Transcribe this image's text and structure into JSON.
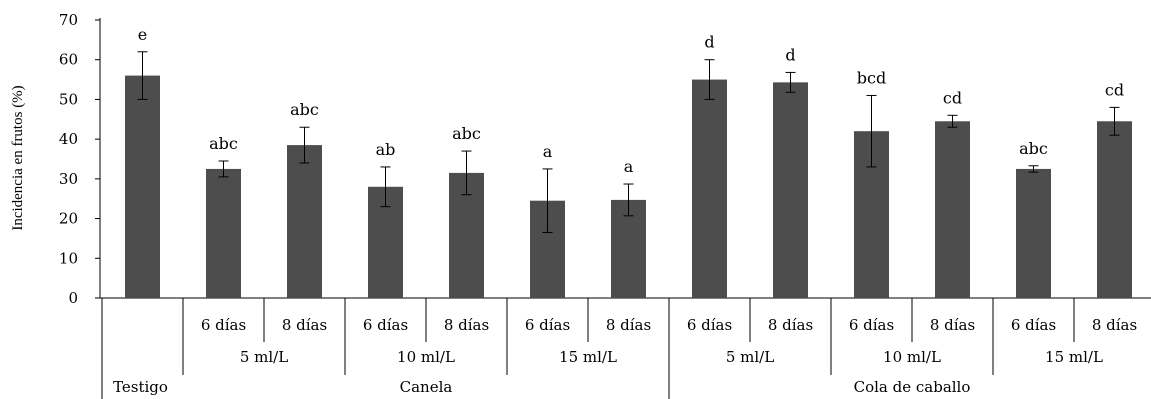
{
  "chart_data": {
    "type": "bar",
    "ylabel": "Incidencia en frutos (%)",
    "ylim": [
      0,
      70
    ],
    "yticks": [
      "0",
      "10",
      "20",
      "30",
      "40",
      "50",
      "60",
      "70"
    ],
    "bar_color": "#4d4d4d",
    "grid": false,
    "bars": [
      {
        "value": 56,
        "error": 6,
        "sig": "e"
      },
      {
        "value": 32.5,
        "error": 2,
        "sig": "abc"
      },
      {
        "value": 38.5,
        "error": 4.5,
        "sig": "abc"
      },
      {
        "value": 28,
        "error": 5,
        "sig": "ab"
      },
      {
        "value": 31.5,
        "error": 5.5,
        "sig": "abc"
      },
      {
        "value": 24.5,
        "error": 8,
        "sig": "a"
      },
      {
        "value": 24.7,
        "error": 4,
        "sig": "a"
      },
      {
        "value": 55,
        "error": 5,
        "sig": "d"
      },
      {
        "value": 54.3,
        "error": 2.5,
        "sig": "d"
      },
      {
        "value": 42,
        "error": 9,
        "sig": "bcd"
      },
      {
        "value": 44.5,
        "error": 1.5,
        "sig": "cd"
      },
      {
        "value": 32.5,
        "error": 0.8,
        "sig": "abc"
      },
      {
        "value": 44.5,
        "error": 3.5,
        "sig": "cd"
      }
    ],
    "days_labels": [
      "6 días",
      "8 días",
      "6 días",
      "8 días",
      "6 días",
      "8 días",
      "6 días",
      "8 días",
      "6 días",
      "8 días",
      "6 días",
      "8 días"
    ],
    "dose_labels": [
      "5 ml/L",
      "10 ml/L",
      "15 ml/L",
      "5 ml/L",
      "10 ml/L",
      "15 ml/L"
    ],
    "group_labels": [
      "Testigo",
      "Canela",
      "Cola de caballo"
    ]
  }
}
